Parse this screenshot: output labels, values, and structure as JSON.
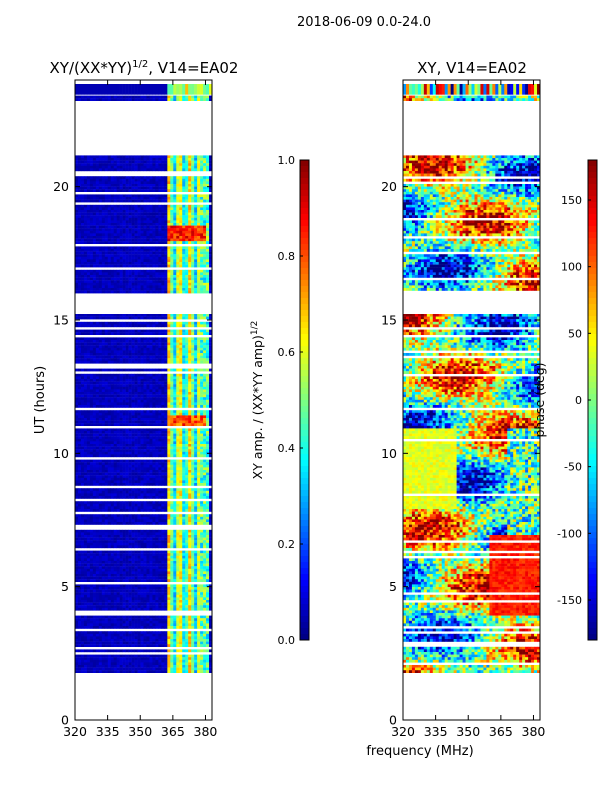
{
  "suptitle": "2018-06-09 0.0-24.0",
  "shared_xlabel": "frequency (MHz)",
  "chart_data": [
    {
      "type": "heatmap",
      "title": "XY/(XX*YY)^1/2, V14=EA02",
      "title_main": "XY/(XX*YY)",
      "title_exp": "1/2",
      "title_tail": ", V14=EA02",
      "xlabel": "frequency (MHz)",
      "ylabel": "UT (hours)",
      "xlim": [
        320,
        383
      ],
      "ylim": [
        0,
        24
      ],
      "xticks": [
        "320",
        "335",
        "350",
        "365",
        "380"
      ],
      "yticks": [
        "0",
        "5",
        "10",
        "15",
        "20"
      ],
      "data_hours": [
        1.8,
        21.2
      ],
      "extra_band_hours": [
        23.3,
        23.5
      ],
      "colorbar": {
        "label_main": "XY amp. / (XX*YY amp)",
        "label_exp": "1/2",
        "range": [
          0.0,
          1.0
        ],
        "ticks": [
          "0.0",
          "0.2",
          "0.4",
          "0.6",
          "0.8",
          "1.0"
        ]
      }
    },
    {
      "type": "heatmap",
      "title": "XY, V14=EA02",
      "xlabel": "frequency (MHz)",
      "ylabel": "",
      "xlim": [
        320,
        383
      ],
      "ylim": [
        0,
        24
      ],
      "xticks": [
        "320",
        "335",
        "350",
        "365",
        "380"
      ],
      "yticks": [
        "0",
        "5",
        "10",
        "15",
        "20"
      ],
      "data_hours": [
        1.8,
        21.2
      ],
      "extra_band_hours": [
        23.3,
        23.5
      ],
      "colorbar": {
        "label": "phase (deg)",
        "range": [
          -180,
          180
        ],
        "ticks": [
          "-150",
          "-100",
          "-50",
          "0",
          "50",
          "100",
          "150"
        ]
      }
    }
  ],
  "gaps_hours": [
    [
      15.2,
      16.2
    ],
    [
      21.2,
      23.3
    ],
    [
      11.5,
      11.45
    ],
    [
      9.2,
      8.7
    ],
    [
      7.35,
      7.0
    ],
    [
      5.6,
      5.5
    ],
    [
      3.65,
      3.55
    ]
  ],
  "colors": {
    "axis": "#000000",
    "jet": [
      "#00007f",
      "#0000ff",
      "#007fff",
      "#00ffff",
      "#7fff7f",
      "#ffff00",
      "#ff7f00",
      "#ff0000",
      "#7f0000"
    ]
  }
}
